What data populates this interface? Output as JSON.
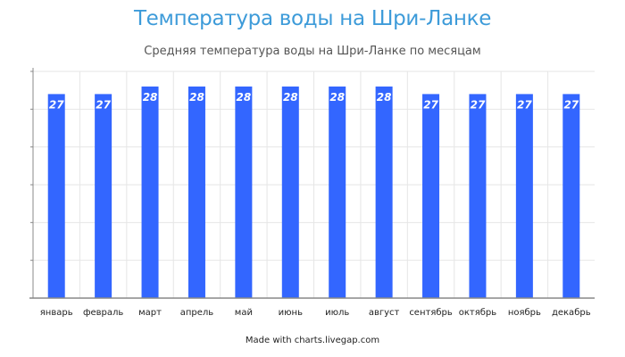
{
  "chart_data": {
    "type": "bar",
    "title": "Температура воды на Шри-Ланке",
    "subtitle": "Средняя температура воды на Шри-Ланке по месяцам",
    "xlabel": "",
    "ylabel": "",
    "categories": [
      "январь",
      "февраль",
      "март",
      "апрель",
      "май",
      "июнь",
      "июль",
      "август",
      "сентябрь",
      "октябрь",
      "ноябрь",
      "декабрь"
    ],
    "values": [
      27,
      27,
      28,
      28,
      28,
      28,
      28,
      28,
      27,
      27,
      27,
      27
    ],
    "ylim": [
      0,
      30
    ],
    "grid": true,
    "legend": "none",
    "data_labels": true,
    "colors": {
      "bar": "#3366ff",
      "title": "#3d9bd9",
      "grid": "#e6e6e6",
      "axis": "#888888"
    }
  },
  "credit": "Made with charts.livegap.com"
}
